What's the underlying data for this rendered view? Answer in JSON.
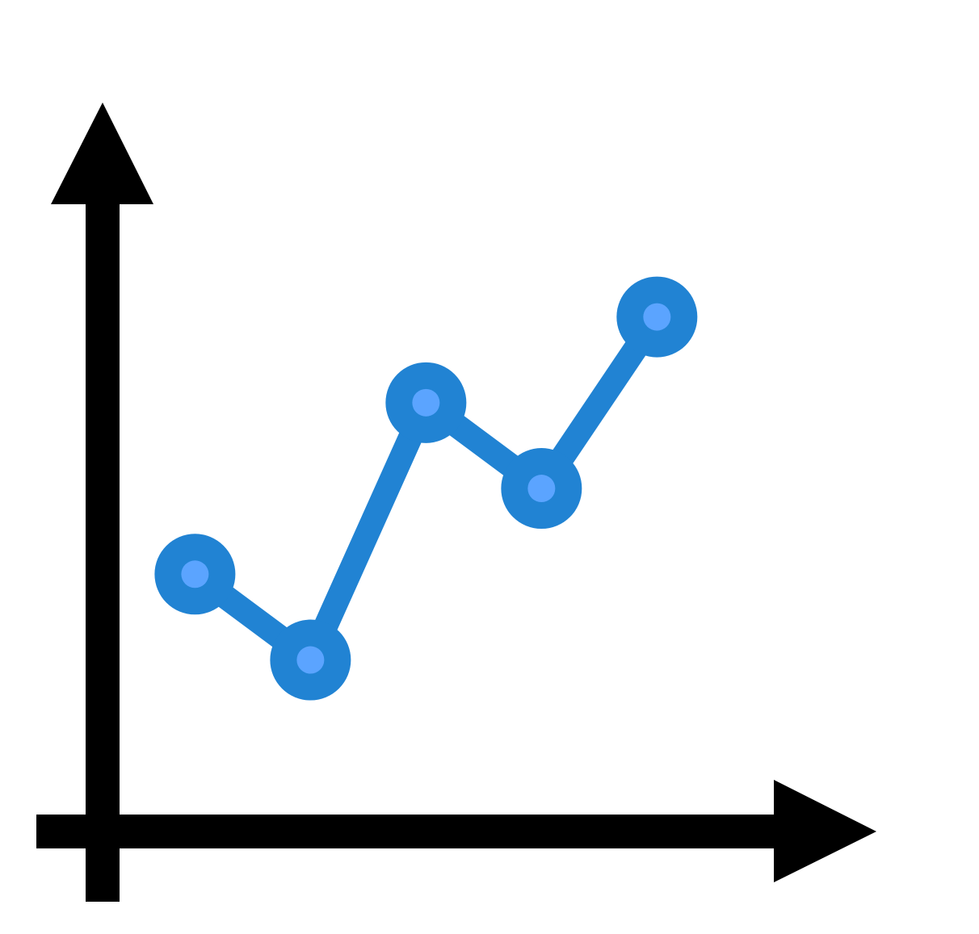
{
  "icon": {
    "name": "line-chart-icon",
    "colors": {
      "axis": "#000000",
      "line": "#2183D3",
      "marker_outer": "#2183D3",
      "marker_inner": "#5BA4FF",
      "background": "#FFFFFF"
    }
  },
  "chart_data": {
    "type": "line",
    "x": [
      1,
      2,
      3,
      4,
      5
    ],
    "series": [
      {
        "values": [
          3,
          2,
          5,
          4,
          6
        ]
      }
    ],
    "title": "",
    "xlabel": "",
    "ylabel": "",
    "xlim": [
      0.2,
      6.9
    ],
    "ylim": [
      0,
      8.5
    ],
    "grid": false
  }
}
